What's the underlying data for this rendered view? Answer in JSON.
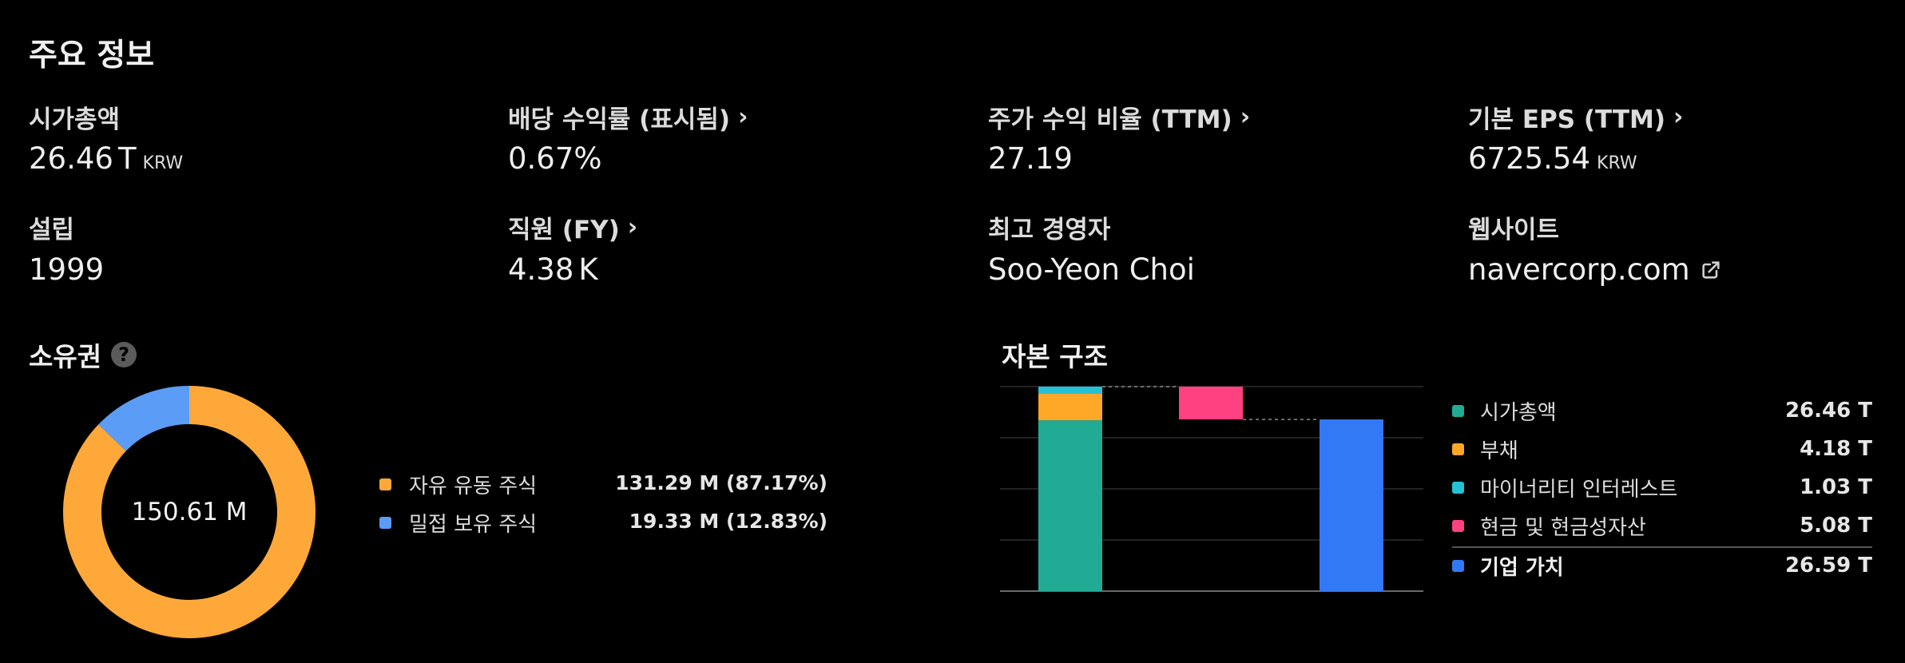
{
  "section_title": "주요 정보",
  "stats": {
    "market_cap": {
      "label": "시가총액",
      "value": "26.46",
      "suffix": "T",
      "unit": "KRW"
    },
    "dividend_yield": {
      "label": "배당 수익률 (표시됨)",
      "value": "0.67%"
    },
    "pe_ratio": {
      "label": "주가 수익 비율 (TTM)",
      "value": "27.19"
    },
    "basic_eps": {
      "label": "기본 EPS (TTM)",
      "value": "6725.54",
      "unit": "KRW"
    },
    "founded": {
      "label": "설립",
      "value": "1999"
    },
    "employees": {
      "label": "직원 (FY)",
      "value": "4.38",
      "suffix": "K"
    },
    "ceo": {
      "label": "최고 경영자",
      "value": "Soo-Yeon Choi"
    },
    "website": {
      "label": "웹사이트",
      "value": "navercorp.com"
    }
  },
  "ownership": {
    "title": "소유권",
    "help": "?",
    "total": "150.61 M",
    "items": [
      {
        "label": "자유 유동 주식",
        "value": "131.29 M (87.17%)",
        "percent": 87.17,
        "color": "#FFA83A"
      },
      {
        "label": "밀접 보유 주식",
        "value": "19.33 M (12.83%)",
        "percent": 12.83,
        "color": "#5B9CF6"
      }
    ]
  },
  "capital_structure": {
    "title": "자본 구조",
    "items": [
      {
        "label": "시가총액",
        "value": "26.46 T",
        "amount": 26.46,
        "color": "#22AB94"
      },
      {
        "label": "부채",
        "value": "4.18 T",
        "amount": 4.18,
        "color": "#FFA726"
      },
      {
        "label": "마이너리티 인터레스트",
        "value": "1.03 T",
        "amount": 1.03,
        "color": "#25C2D6"
      },
      {
        "label": "현금 및 현금성자산",
        "value": "5.08 T",
        "amount": 5.08,
        "color": "#FF4081"
      },
      {
        "label": "기업 가치",
        "value": "26.59 T",
        "amount": 26.59,
        "color": "#3179F5"
      }
    ]
  },
  "chart_data": [
    {
      "type": "pie",
      "categories": [
        "자유 유동 주식",
        "밀접 보유 주식"
      ],
      "values": [
        131.29,
        19.33
      ],
      "center_label": "150.61 M"
    },
    {
      "type": "bar",
      "subtype": "waterfall",
      "title": "자본 구조",
      "categories": [
        "시가총액",
        "부채",
        "마이너리티 인터레스트",
        "현금 및 현금성자산",
        "기업 가치"
      ],
      "values": [
        26.46,
        4.18,
        1.03,
        -5.08,
        26.59
      ],
      "grid": true
    }
  ]
}
